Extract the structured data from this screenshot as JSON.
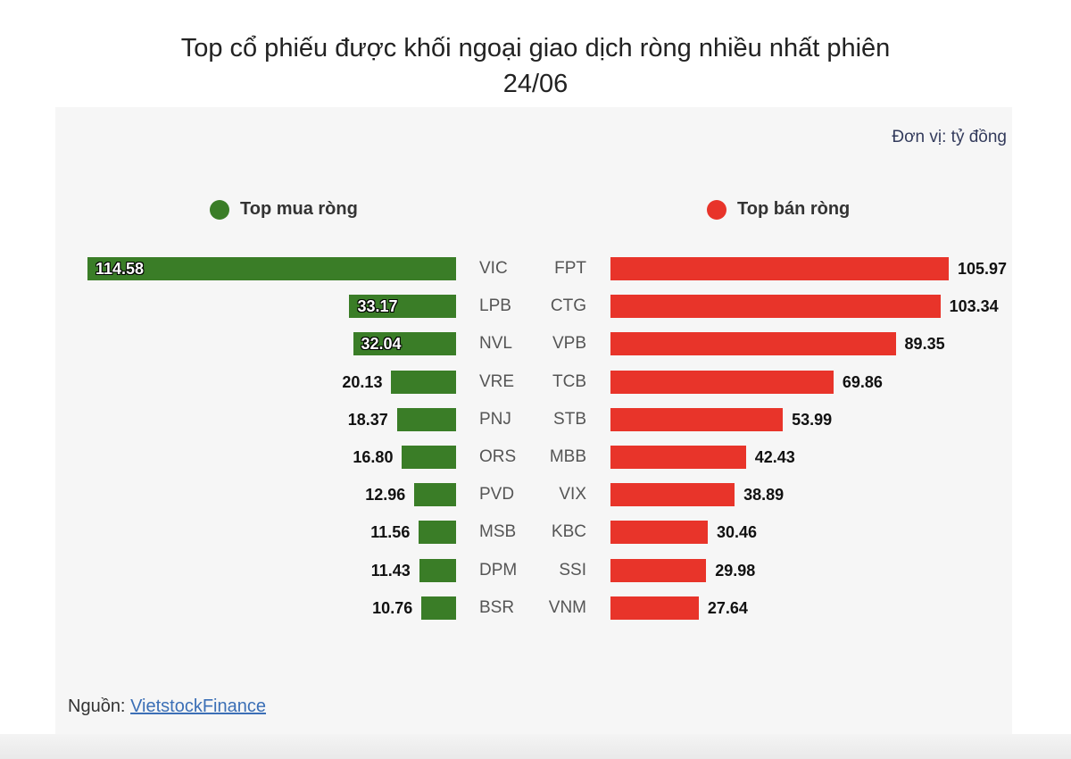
{
  "chart_data": {
    "type": "bar",
    "title_line1": "Top cổ phiếu được khối ngoại giao dịch ròng nhiều nhất phiên",
    "title_line2": "24/06",
    "unit": "Đơn vị: tỷ đồng",
    "source_prefix": "Nguồn: ",
    "source_link": "VietstockFinance",
    "colors": {
      "buy": "#3a7d27",
      "sell": "#e8342a"
    },
    "buy": {
      "name": "Top mua ròng",
      "categories": [
        "VIC",
        "LPB",
        "NVL",
        "VRE",
        "PNJ",
        "ORS",
        "PVD",
        "MSB",
        "DPM",
        "BSR"
      ],
      "values": [
        114.58,
        33.17,
        32.04,
        20.13,
        18.37,
        16.8,
        12.96,
        11.56,
        11.43,
        10.76
      ],
      "labels": [
        "114.58",
        "33.17",
        "32.04",
        "20.13",
        "18.37",
        "16.80",
        "12.96",
        "11.56",
        "11.43",
        "10.76"
      ]
    },
    "sell": {
      "name": "Top bán ròng",
      "categories": [
        "FPT",
        "CTG",
        "VPB",
        "TCB",
        "STB",
        "MBB",
        "VIX",
        "KBC",
        "SSI",
        "VNM"
      ],
      "values": [
        105.97,
        103.34,
        89.35,
        69.86,
        53.99,
        42.43,
        38.89,
        30.46,
        29.98,
        27.64
      ],
      "labels": [
        "105.97",
        "103.34",
        "89.35",
        "69.86",
        "53.99",
        "42.43",
        "38.89",
        "30.46",
        "29.98",
        "27.64"
      ]
    }
  }
}
